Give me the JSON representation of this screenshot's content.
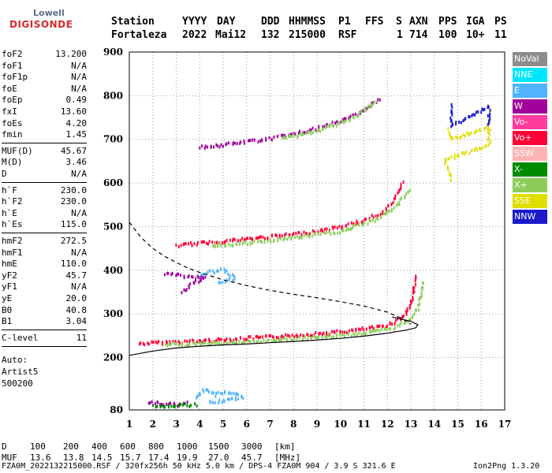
{
  "logo": {
    "top": "Lowell",
    "bottom": "DIGISONDE"
  },
  "header": {
    "row1": [
      "Station",
      "YYYY",
      "DAY",
      "DDD",
      "HHMMSS",
      "P1",
      "FFS",
      "S",
      "AXN",
      "PPS",
      "IGA",
      "PS"
    ],
    "row2": [
      "Fortaleza",
      "2022",
      "Mai12",
      "132",
      "215000",
      "RSF",
      "1",
      "714",
      "100",
      "10+",
      "11"
    ]
  },
  "params": [
    {
      "label": "foF2",
      "value": "13.200"
    },
    {
      "label": "foF1",
      "value": "N/A"
    },
    {
      "label": "foF1p",
      "value": "N/A"
    },
    {
      "label": "foE",
      "value": "N/A"
    },
    {
      "label": "foEp",
      "value": "0.49"
    },
    {
      "label": "fxI",
      "value": "13.60"
    },
    {
      "label": "foEs",
      "value": "4.20"
    },
    {
      "label": "fmin",
      "value": "1.45"
    },
    {
      "label": "MUF(D)",
      "value": "45.67"
    },
    {
      "label": "M(D)",
      "value": "3.46"
    },
    {
      "label": "D",
      "value": "N/A"
    },
    {
      "label": "h`F",
      "value": "230.0"
    },
    {
      "label": "h`F2",
      "value": "230.0"
    },
    {
      "label": "h`E",
      "value": "N/A"
    },
    {
      "label": "h`Es",
      "value": "115.0"
    },
    {
      "label": "hmF2",
      "value": "272.5"
    },
    {
      "label": "hmF1",
      "value": "N/A"
    },
    {
      "label": "hmE",
      "value": "110.0"
    },
    {
      "label": "yF2",
      "value": "45.7"
    },
    {
      "label": "yF1",
      "value": "N/A"
    },
    {
      "label": "yE",
      "value": "20.0"
    },
    {
      "label": "B0",
      "value": "40.8"
    },
    {
      "label": "B1",
      "value": "3.04"
    },
    {
      "label": "C-level",
      "value": "11"
    }
  ],
  "auto": {
    "line1": "Auto:",
    "line2": "Artist5",
    "line3": "500200"
  },
  "legend": [
    {
      "label": "NoVal",
      "color": "#8c8c8c"
    },
    {
      "label": "NNE",
      "color": "#00e6ff"
    },
    {
      "label": "E",
      "color": "#4fb3ff"
    },
    {
      "label": "W",
      "color": "#a0009c"
    },
    {
      "label": "Vo-",
      "color": "#ff3c9e"
    },
    {
      "label": "Vo+",
      "color": "#ff0037"
    },
    {
      "label": "SSW",
      "color": "#ffb4b4"
    },
    {
      "label": "X-",
      "color": "#008a00"
    },
    {
      "label": "X+",
      "color": "#8ccc5a"
    },
    {
      "label": "SSE",
      "color": "#dede00"
    },
    {
      "label": "NNW",
      "color": "#1a1acc"
    }
  ],
  "footer": {
    "row_d": [
      "D",
      "100",
      "200",
      "400",
      "600",
      "800",
      "1000",
      "1500",
      "3000",
      "[km]"
    ],
    "row_muf": [
      "MUF",
      "13.6",
      "13.8",
      "14.5",
      "15.7",
      "17.4",
      "19.9",
      "27.0",
      "45.7",
      "[MHz]"
    ],
    "file_line": "FZA0M_2022132215000.RSF / 320fx256h 50 kHz 5.0 km / DPS-4 FZA0M 904 / 3.9 S 321.6 E",
    "version": "Ion2Png 1.3.20"
  },
  "chart_data": {
    "type": "scatter",
    "title": "",
    "xlabel": "",
    "ylabel": "",
    "xlim": [
      1,
      17
    ],
    "ylim": [
      80,
      900
    ],
    "xticks": [
      1,
      2,
      3,
      4,
      5,
      6,
      7,
      8,
      9,
      10,
      11,
      12,
      13,
      14,
      15,
      16,
      17
    ],
    "yticks": [
      80,
      200,
      300,
      400,
      500,
      600,
      700,
      800,
      900
    ],
    "traces": [
      {
        "name": "Vo+",
        "color": "#ff0037",
        "points": [
          [
            1.4,
            235
          ],
          [
            2.5,
            238
          ],
          [
            3.5,
            240
          ],
          [
            4.5,
            243
          ],
          [
            5.5,
            246
          ],
          [
            6.5,
            249
          ],
          [
            7.5,
            252
          ],
          [
            8.5,
            256
          ],
          [
            9.5,
            260
          ],
          [
            10.5,
            265
          ],
          [
            11.5,
            272
          ],
          [
            12.2,
            282
          ],
          [
            12.7,
            300
          ],
          [
            13.0,
            330
          ],
          [
            13.2,
            390
          ]
        ]
      },
      {
        "name": "X+",
        "color": "#8ccc5a",
        "points": [
          [
            2.5,
            232
          ],
          [
            3.5,
            234
          ],
          [
            4.5,
            236
          ],
          [
            5.5,
            238
          ],
          [
            6.5,
            241
          ],
          [
            7.5,
            245
          ],
          [
            8.5,
            248
          ],
          [
            9.5,
            252
          ],
          [
            10.5,
            257
          ],
          [
            11.5,
            263
          ],
          [
            12.3,
            272
          ],
          [
            12.9,
            290
          ],
          [
            13.3,
            320
          ],
          [
            13.5,
            375
          ]
        ]
      },
      {
        "name": "Vo+",
        "color": "#ff0037",
        "points": [
          [
            3.0,
            460
          ],
          [
            4.0,
            465
          ],
          [
            5.0,
            470
          ],
          [
            6.0,
            475
          ],
          [
            7.0,
            480
          ],
          [
            8.0,
            486
          ],
          [
            9.0,
            493
          ],
          [
            10.0,
            503
          ],
          [
            11.0,
            518
          ],
          [
            11.8,
            538
          ],
          [
            12.3,
            565
          ],
          [
            12.6,
            605
          ]
        ]
      },
      {
        "name": "X+",
        "color": "#8ccc5a",
        "points": [
          [
            4.5,
            460
          ],
          [
            6.0,
            465
          ],
          [
            8.0,
            478
          ],
          [
            10.0,
            492
          ],
          [
            11.5,
            520
          ],
          [
            12.4,
            552
          ],
          [
            12.9,
            590
          ]
        ]
      },
      {
        "name": "W",
        "color": "#a0009c",
        "points": [
          [
            4.0,
            685
          ],
          [
            5.0,
            690
          ],
          [
            6.0,
            698
          ],
          [
            7.0,
            705
          ],
          [
            8.0,
            715
          ],
          [
            9.0,
            728
          ],
          [
            10.0,
            745
          ],
          [
            11.0,
            770
          ],
          [
            11.6,
            795
          ]
        ]
      },
      {
        "name": "X+",
        "color": "#8ccc5a",
        "points": [
          [
            7.5,
            705
          ],
          [
            9.0,
            722
          ],
          [
            10.5,
            752
          ],
          [
            11.5,
            788
          ]
        ]
      },
      {
        "name": "E",
        "color": "#4fb3ff",
        "points": [
          [
            3.8,
            110
          ],
          [
            4.2,
            130
          ],
          [
            4.6,
            118
          ],
          [
            5.0,
            125
          ],
          [
            5.4,
            122
          ],
          [
            5.8,
            112
          ],
          [
            4.4,
            100
          ]
        ]
      },
      {
        "name": "W",
        "color": "#a0009c",
        "points": [
          [
            1.8,
            100
          ],
          [
            2.2,
            98
          ],
          [
            2.6,
            96
          ],
          [
            3.0,
            95
          ],
          [
            3.4,
            98
          ]
        ]
      },
      {
        "name": "X-",
        "color": "#008a00",
        "points": [
          [
            2.0,
            94
          ],
          [
            2.6,
            93
          ],
          [
            3.2,
            95
          ],
          [
            3.8,
            94
          ]
        ]
      },
      {
        "name": "E",
        "color": "#4fb3ff",
        "points": [
          [
            4.0,
            395
          ],
          [
            4.5,
            400
          ],
          [
            5.0,
            405
          ],
          [
            5.5,
            385
          ],
          [
            4.8,
            375
          ]
        ]
      },
      {
        "name": "W",
        "color": "#a0009c",
        "points": [
          [
            3.2,
            355
          ],
          [
            3.6,
            370
          ],
          [
            4.2,
            385
          ],
          [
            2.5,
            395
          ]
        ]
      },
      {
        "name": "SSE",
        "color": "#dede00",
        "points": [
          [
            14.6,
            725
          ],
          [
            14.7,
            705
          ],
          [
            16.3,
            730
          ],
          [
            16.3,
            690
          ],
          [
            14.4,
            655
          ],
          [
            14.7,
            612
          ]
        ]
      },
      {
        "name": "NNW",
        "color": "#1a1acc",
        "points": [
          [
            14.7,
            780
          ],
          [
            14.7,
            735
          ],
          [
            16.3,
            778
          ],
          [
            16.3,
            735
          ]
        ]
      }
    ],
    "profile_solid": [
      [
        1.0,
        205
      ],
      [
        2.0,
        215
      ],
      [
        3.0,
        222
      ],
      [
        4.0,
        226
      ],
      [
        5.0,
        229
      ],
      [
        6.0,
        231
      ],
      [
        7.0,
        234
      ],
      [
        8.0,
        237
      ],
      [
        9.0,
        240
      ],
      [
        10.0,
        244
      ],
      [
        11.0,
        249
      ],
      [
        12.0,
        256
      ],
      [
        12.8,
        263
      ],
      [
        13.2,
        268
      ],
      [
        13.3,
        275
      ],
      [
        13.0,
        283
      ],
      [
        12.2,
        293
      ]
    ],
    "profile_dashed": [
      [
        1.0,
        510
      ],
      [
        1.5,
        475
      ],
      [
        2.0,
        450
      ],
      [
        2.5,
        432
      ],
      [
        3.0,
        418
      ],
      [
        3.5,
        405
      ],
      [
        4.0,
        395
      ],
      [
        5.0,
        378
      ],
      [
        6.0,
        365
      ],
      [
        7.0,
        354
      ],
      [
        8.0,
        345
      ],
      [
        9.0,
        337
      ],
      [
        10.0,
        328
      ],
      [
        11.0,
        318
      ],
      [
        12.0,
        304
      ],
      [
        12.6,
        290
      ],
      [
        13.0,
        276
      ]
    ]
  }
}
